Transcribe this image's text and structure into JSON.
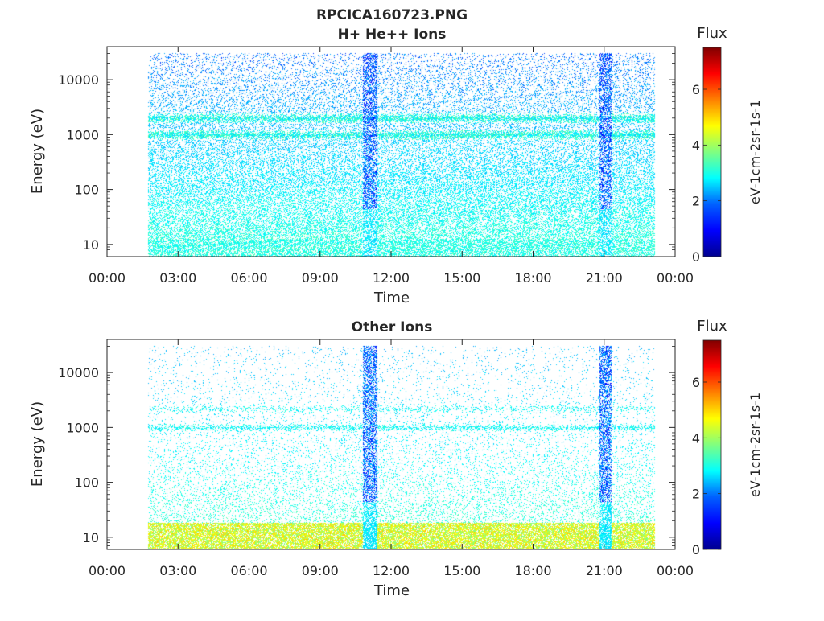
{
  "figure": {
    "title": "RPCICA160723.PNG"
  },
  "colorscale": {
    "stops": [
      "#00008f",
      "#0000ff",
      "#00a0ff",
      "#00ffff",
      "#80ff80",
      "#ffff00",
      "#ff8000",
      "#ff0000",
      "#800000"
    ]
  },
  "chart_data": [
    {
      "type": "heatmap",
      "title": "H+ He++ Ions",
      "xlabel": "Time",
      "ylabel": "Energy (eV)",
      "x_ticks": [
        "00:00",
        "03:00",
        "06:00",
        "09:00",
        "12:00",
        "15:00",
        "18:00",
        "21:00",
        "00:00"
      ],
      "y_ticks": [
        "10",
        "100",
        "1000",
        "10000"
      ],
      "y_scale": "log",
      "xlim_hours": [
        0,
        24
      ],
      "ylim": [
        6,
        40000
      ],
      "data_span_hours": [
        1.75,
        23.15
      ],
      "bursts_hours": [
        [
          10.8,
          11.4
        ],
        [
          20.8,
          21.3
        ]
      ],
      "bands_ev": [
        1000,
        2000
      ],
      "colorbar": {
        "label": "Flux",
        "unit": "eV-1cm-2sr-1s-1",
        "ticks": [
          "0",
          "2",
          "4",
          "6"
        ],
        "range": [
          0,
          7.5
        ]
      }
    },
    {
      "type": "heatmap",
      "title": "Other Ions",
      "xlabel": "Time",
      "ylabel": "Energy (eV)",
      "x_ticks": [
        "00:00",
        "03:00",
        "06:00",
        "09:00",
        "12:00",
        "15:00",
        "18:00",
        "21:00",
        "00:00"
      ],
      "y_ticks": [
        "10",
        "100",
        "1000",
        "10000"
      ],
      "y_scale": "log",
      "xlim_hours": [
        0,
        24
      ],
      "ylim": [
        6,
        40000
      ],
      "data_span_hours": [
        1.75,
        23.15
      ],
      "bursts_hours": [
        [
          10.8,
          11.4
        ],
        [
          20.8,
          21.3
        ]
      ],
      "bands_ev": [
        1000,
        2200
      ],
      "colorbar": {
        "label": "Flux",
        "unit": "eV-1cm-2sr-1s-1",
        "ticks": [
          "0",
          "2",
          "4",
          "6"
        ],
        "range": [
          0,
          7.5
        ]
      }
    }
  ]
}
